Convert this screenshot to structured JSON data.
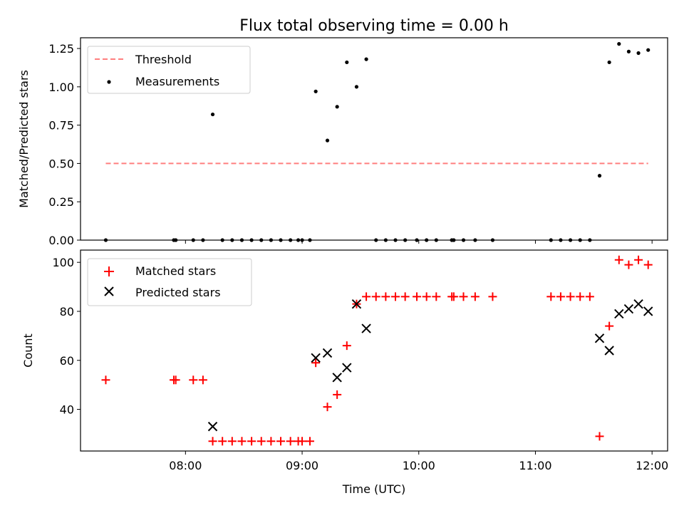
{
  "title": "Flux total observing time = 0.00 h",
  "chart_data": [
    {
      "type": "scatter",
      "ylabel": "Matched/Predicted stars",
      "xlim": [
        "07:06",
        "12:08"
      ],
      "ylim": [
        0,
        1.32
      ],
      "yticks": [
        "0.00",
        "0.25",
        "0.50",
        "0.75",
        "1.00",
        "1.25"
      ],
      "legend_position": "top-left",
      "threshold": {
        "name": "Threshold",
        "value": 0.5,
        "x_range": [
          "07:19",
          "11:58"
        ],
        "color": "#ff7f7f",
        "style": "dashed"
      },
      "series": [
        {
          "name": "Measurements",
          "color": "#000000",
          "marker": "dot",
          "points": [
            {
              "x": "07:19",
              "y": 0.0
            },
            {
              "x": "07:54",
              "y": 0.0
            },
            {
              "x": "07:55",
              "y": 0.0
            },
            {
              "x": "08:04",
              "y": 0.0
            },
            {
              "x": "08:09",
              "y": 0.0
            },
            {
              "x": "08:14",
              "y": 0.82
            },
            {
              "x": "08:19",
              "y": 0.0
            },
            {
              "x": "08:24",
              "y": 0.0
            },
            {
              "x": "08:29",
              "y": 0.0
            },
            {
              "x": "08:34",
              "y": 0.0
            },
            {
              "x": "08:39",
              "y": 0.0
            },
            {
              "x": "08:44",
              "y": 0.0
            },
            {
              "x": "08:49",
              "y": 0.0
            },
            {
              "x": "08:54",
              "y": 0.0
            },
            {
              "x": "08:58",
              "y": 0.0
            },
            {
              "x": "09:00",
              "y": 0.0
            },
            {
              "x": "09:04",
              "y": 0.0
            },
            {
              "x": "09:07",
              "y": 0.97
            },
            {
              "x": "09:13",
              "y": 0.65
            },
            {
              "x": "09:18",
              "y": 0.87
            },
            {
              "x": "09:23",
              "y": 1.16
            },
            {
              "x": "09:28",
              "y": 1.0
            },
            {
              "x": "09:33",
              "y": 1.18
            },
            {
              "x": "09:38",
              "y": 0.0
            },
            {
              "x": "09:43",
              "y": 0.0
            },
            {
              "x": "09:48",
              "y": 0.0
            },
            {
              "x": "09:53",
              "y": 0.0
            },
            {
              "x": "09:59",
              "y": 0.0
            },
            {
              "x": "10:04",
              "y": 0.0
            },
            {
              "x": "10:09",
              "y": 0.0
            },
            {
              "x": "10:17",
              "y": 0.0
            },
            {
              "x": "10:18",
              "y": 0.0
            },
            {
              "x": "10:23",
              "y": 0.0
            },
            {
              "x": "10:29",
              "y": 0.0
            },
            {
              "x": "10:38",
              "y": 0.0
            },
            {
              "x": "11:08",
              "y": 0.0
            },
            {
              "x": "11:13",
              "y": 0.0
            },
            {
              "x": "11:18",
              "y": 0.0
            },
            {
              "x": "11:23",
              "y": 0.0
            },
            {
              "x": "11:28",
              "y": 0.0
            },
            {
              "x": "11:33",
              "y": 0.42
            },
            {
              "x": "11:38",
              "y": 1.16
            },
            {
              "x": "11:43",
              "y": 1.28
            },
            {
              "x": "11:48",
              "y": 1.23
            },
            {
              "x": "11:53",
              "y": 1.22
            },
            {
              "x": "11:58",
              "y": 1.24
            }
          ]
        }
      ]
    },
    {
      "type": "scatter",
      "xlabel": "Time (UTC)",
      "ylabel": "Count",
      "xlim": [
        "07:06",
        "12:08"
      ],
      "ylim": [
        23,
        105
      ],
      "xticks": [
        "08:00",
        "09:00",
        "10:00",
        "11:00",
        "12:00"
      ],
      "yticks": [
        "40",
        "60",
        "80",
        "100"
      ],
      "legend_position": "top-left",
      "series": [
        {
          "name": "Matched stars",
          "color": "#ff0000",
          "marker": "plus",
          "points": [
            {
              "x": "07:19",
              "y": 52
            },
            {
              "x": "07:54",
              "y": 52
            },
            {
              "x": "07:55",
              "y": 52
            },
            {
              "x": "08:04",
              "y": 52
            },
            {
              "x": "08:09",
              "y": 52
            },
            {
              "x": "08:14",
              "y": 27
            },
            {
              "x": "08:19",
              "y": 27
            },
            {
              "x": "08:24",
              "y": 27
            },
            {
              "x": "08:29",
              "y": 27
            },
            {
              "x": "08:34",
              "y": 27
            },
            {
              "x": "08:39",
              "y": 27
            },
            {
              "x": "08:44",
              "y": 27
            },
            {
              "x": "08:49",
              "y": 27
            },
            {
              "x": "08:54",
              "y": 27
            },
            {
              "x": "08:58",
              "y": 27
            },
            {
              "x": "09:00",
              "y": 27
            },
            {
              "x": "09:04",
              "y": 27
            },
            {
              "x": "09:07",
              "y": 59
            },
            {
              "x": "09:13",
              "y": 41
            },
            {
              "x": "09:18",
              "y": 46
            },
            {
              "x": "09:23",
              "y": 66
            },
            {
              "x": "09:28",
              "y": 83
            },
            {
              "x": "09:33",
              "y": 86
            },
            {
              "x": "09:38",
              "y": 86
            },
            {
              "x": "09:43",
              "y": 86
            },
            {
              "x": "09:48",
              "y": 86
            },
            {
              "x": "09:53",
              "y": 86
            },
            {
              "x": "09:59",
              "y": 86
            },
            {
              "x": "10:04",
              "y": 86
            },
            {
              "x": "10:09",
              "y": 86
            },
            {
              "x": "10:17",
              "y": 86
            },
            {
              "x": "10:18",
              "y": 86
            },
            {
              "x": "10:23",
              "y": 86
            },
            {
              "x": "10:29",
              "y": 86
            },
            {
              "x": "10:38",
              "y": 86
            },
            {
              "x": "11:08",
              "y": 86
            },
            {
              "x": "11:13",
              "y": 86
            },
            {
              "x": "11:18",
              "y": 86
            },
            {
              "x": "11:23",
              "y": 86
            },
            {
              "x": "11:28",
              "y": 86
            },
            {
              "x": "11:33",
              "y": 29
            },
            {
              "x": "11:38",
              "y": 74
            },
            {
              "x": "11:43",
              "y": 101
            },
            {
              "x": "11:48",
              "y": 99
            },
            {
              "x": "11:53",
              "y": 101
            },
            {
              "x": "11:58",
              "y": 99
            }
          ]
        },
        {
          "name": "Predicted stars",
          "color": "#000000",
          "marker": "x",
          "points": [
            {
              "x": "08:14",
              "y": 33
            },
            {
              "x": "09:07",
              "y": 61
            },
            {
              "x": "09:13",
              "y": 63
            },
            {
              "x": "09:18",
              "y": 53
            },
            {
              "x": "09:23",
              "y": 57
            },
            {
              "x": "09:28",
              "y": 83
            },
            {
              "x": "09:33",
              "y": 73
            },
            {
              "x": "11:33",
              "y": 69
            },
            {
              "x": "11:38",
              "y": 64
            },
            {
              "x": "11:43",
              "y": 79
            },
            {
              "x": "11:48",
              "y": 81
            },
            {
              "x": "11:53",
              "y": 83
            },
            {
              "x": "11:58",
              "y": 80
            }
          ]
        }
      ]
    }
  ]
}
